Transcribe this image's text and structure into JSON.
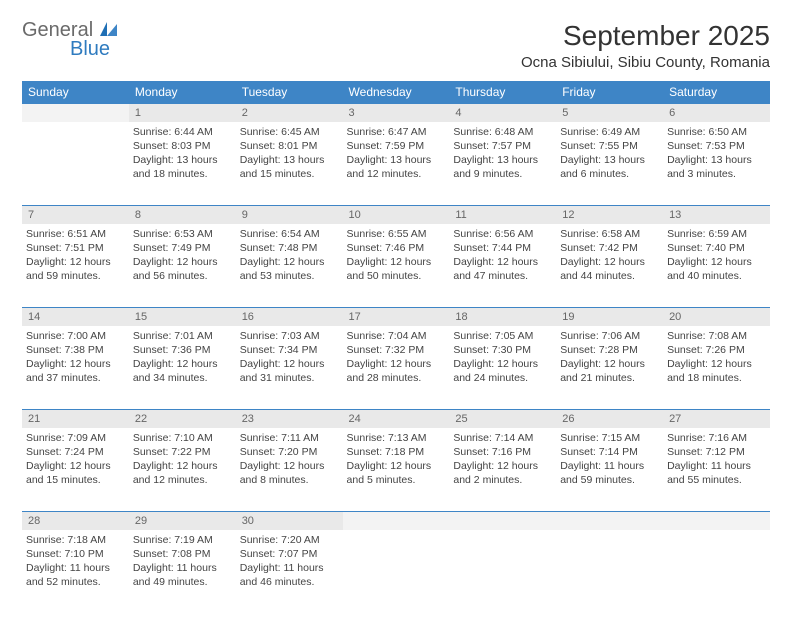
{
  "logo": {
    "general": "General",
    "blue": "Blue"
  },
  "title": "September 2025",
  "location": "Ocna Sibiului, Sibiu County, Romania",
  "colors": {
    "header_bg": "#3e85c6",
    "header_fg": "#ffffff",
    "daynum_bg": "#e9e9e9",
    "daynum_fg": "#666666",
    "rule": "#3e85c6",
    "text": "#444444"
  },
  "dow": [
    "Sunday",
    "Monday",
    "Tuesday",
    "Wednesday",
    "Thursday",
    "Friday",
    "Saturday"
  ],
  "weeks": [
    [
      null,
      {
        "n": "1",
        "sr": "6:44 AM",
        "ss": "8:03 PM",
        "dl": "13 hours and 18 minutes."
      },
      {
        "n": "2",
        "sr": "6:45 AM",
        "ss": "8:01 PM",
        "dl": "13 hours and 15 minutes."
      },
      {
        "n": "3",
        "sr": "6:47 AM",
        "ss": "7:59 PM",
        "dl": "13 hours and 12 minutes."
      },
      {
        "n": "4",
        "sr": "6:48 AM",
        "ss": "7:57 PM",
        "dl": "13 hours and 9 minutes."
      },
      {
        "n": "5",
        "sr": "6:49 AM",
        "ss": "7:55 PM",
        "dl": "13 hours and 6 minutes."
      },
      {
        "n": "6",
        "sr": "6:50 AM",
        "ss": "7:53 PM",
        "dl": "13 hours and 3 minutes."
      }
    ],
    [
      {
        "n": "7",
        "sr": "6:51 AM",
        "ss": "7:51 PM",
        "dl": "12 hours and 59 minutes."
      },
      {
        "n": "8",
        "sr": "6:53 AM",
        "ss": "7:49 PM",
        "dl": "12 hours and 56 minutes."
      },
      {
        "n": "9",
        "sr": "6:54 AM",
        "ss": "7:48 PM",
        "dl": "12 hours and 53 minutes."
      },
      {
        "n": "10",
        "sr": "6:55 AM",
        "ss": "7:46 PM",
        "dl": "12 hours and 50 minutes."
      },
      {
        "n": "11",
        "sr": "6:56 AM",
        "ss": "7:44 PM",
        "dl": "12 hours and 47 minutes."
      },
      {
        "n": "12",
        "sr": "6:58 AM",
        "ss": "7:42 PM",
        "dl": "12 hours and 44 minutes."
      },
      {
        "n": "13",
        "sr": "6:59 AM",
        "ss": "7:40 PM",
        "dl": "12 hours and 40 minutes."
      }
    ],
    [
      {
        "n": "14",
        "sr": "7:00 AM",
        "ss": "7:38 PM",
        "dl": "12 hours and 37 minutes."
      },
      {
        "n": "15",
        "sr": "7:01 AM",
        "ss": "7:36 PM",
        "dl": "12 hours and 34 minutes."
      },
      {
        "n": "16",
        "sr": "7:03 AM",
        "ss": "7:34 PM",
        "dl": "12 hours and 31 minutes."
      },
      {
        "n": "17",
        "sr": "7:04 AM",
        "ss": "7:32 PM",
        "dl": "12 hours and 28 minutes."
      },
      {
        "n": "18",
        "sr": "7:05 AM",
        "ss": "7:30 PM",
        "dl": "12 hours and 24 minutes."
      },
      {
        "n": "19",
        "sr": "7:06 AM",
        "ss": "7:28 PM",
        "dl": "12 hours and 21 minutes."
      },
      {
        "n": "20",
        "sr": "7:08 AM",
        "ss": "7:26 PM",
        "dl": "12 hours and 18 minutes."
      }
    ],
    [
      {
        "n": "21",
        "sr": "7:09 AM",
        "ss": "7:24 PM",
        "dl": "12 hours and 15 minutes."
      },
      {
        "n": "22",
        "sr": "7:10 AM",
        "ss": "7:22 PM",
        "dl": "12 hours and 12 minutes."
      },
      {
        "n": "23",
        "sr": "7:11 AM",
        "ss": "7:20 PM",
        "dl": "12 hours and 8 minutes."
      },
      {
        "n": "24",
        "sr": "7:13 AM",
        "ss": "7:18 PM",
        "dl": "12 hours and 5 minutes."
      },
      {
        "n": "25",
        "sr": "7:14 AM",
        "ss": "7:16 PM",
        "dl": "12 hours and 2 minutes."
      },
      {
        "n": "26",
        "sr": "7:15 AM",
        "ss": "7:14 PM",
        "dl": "11 hours and 59 minutes."
      },
      {
        "n": "27",
        "sr": "7:16 AM",
        "ss": "7:12 PM",
        "dl": "11 hours and 55 minutes."
      }
    ],
    [
      {
        "n": "28",
        "sr": "7:18 AM",
        "ss": "7:10 PM",
        "dl": "11 hours and 52 minutes."
      },
      {
        "n": "29",
        "sr": "7:19 AM",
        "ss": "7:08 PM",
        "dl": "11 hours and 49 minutes."
      },
      {
        "n": "30",
        "sr": "7:20 AM",
        "ss": "7:07 PM",
        "dl": "11 hours and 46 minutes."
      },
      null,
      null,
      null,
      null
    ]
  ],
  "labels": {
    "sunrise": "Sunrise:",
    "sunset": "Sunset:",
    "daylight": "Daylight:"
  }
}
